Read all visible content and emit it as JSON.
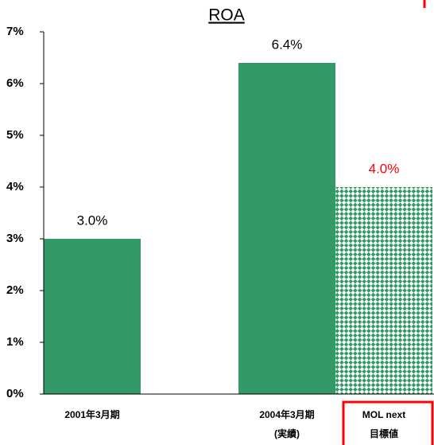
{
  "chart_data": {
    "type": "bar",
    "title": "ROA",
    "categories": [
      [
        "2001年3月期"
      ],
      [
        "2004年3月期",
        "(実績)"
      ],
      [
        "MOL next",
        "目標値"
      ]
    ],
    "values": [
      3.0,
      6.4,
      4.0
    ],
    "value_labels": [
      "3.0%",
      "6.4%",
      "4.0%"
    ],
    "color": "#339966",
    "bar_styles": [
      "solid",
      "solid",
      "checker"
    ],
    "label_colors": [
      "#000000",
      "#000000",
      "#ff0000"
    ],
    "highlight": 2,
    "ylim": [
      0,
      7
    ],
    "yticks": [
      {
        "value": 0,
        "label": "0%"
      },
      {
        "value": 1,
        "label": "1%"
      },
      {
        "value": 2,
        "label": "2%"
      },
      {
        "value": 3,
        "label": "3%"
      },
      {
        "value": 4,
        "label": "4%"
      },
      {
        "value": 5,
        "label": "5%"
      },
      {
        "value": 6,
        "label": "6%"
      },
      {
        "value": 7,
        "label": "7%"
      }
    ],
    "grid": false
  }
}
